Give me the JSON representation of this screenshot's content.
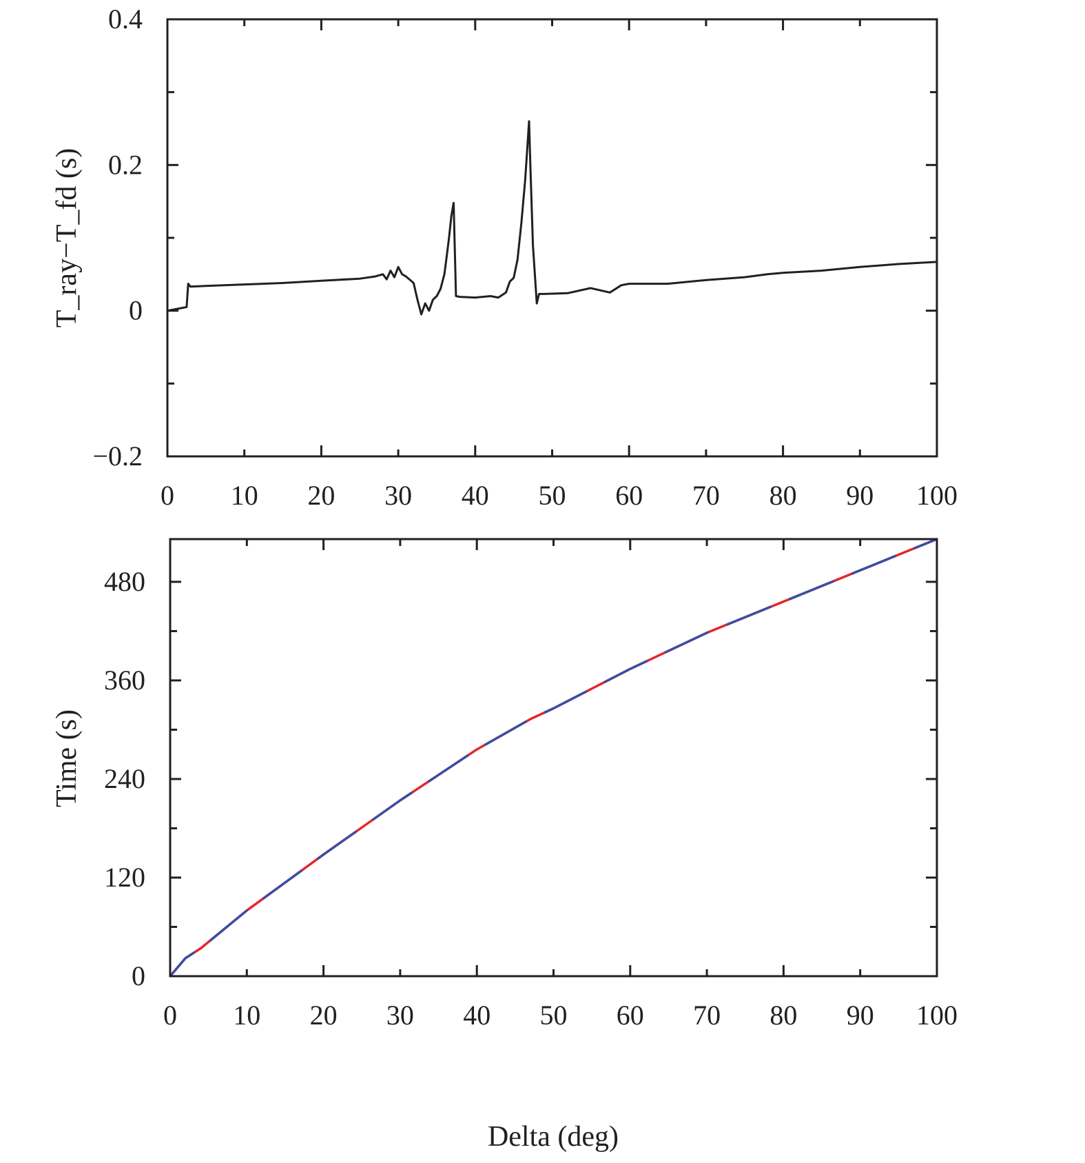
{
  "chart_data": [
    {
      "type": "line",
      "id": "top",
      "title": "",
      "xlabel": "",
      "ylabel": "T_ray−T_fd (s)",
      "xlim": [
        0,
        100
      ],
      "ylim": [
        -0.2,
        0.4
      ],
      "xticks": [
        0,
        10,
        20,
        30,
        40,
        50,
        60,
        70,
        80,
        90,
        100
      ],
      "xtick_labels": [
        "0",
        "10",
        "20",
        "30",
        "40",
        "50",
        "60",
        "70",
        "80",
        "90",
        "100"
      ],
      "yticks": [
        -0.2,
        0,
        0.2,
        0.4
      ],
      "ytick_labels": [
        "−0.2",
        "0",
        "0.2",
        "0.4"
      ],
      "yminor": [
        -0.1,
        0.1,
        0.3
      ],
      "grid": false,
      "legend": null,
      "series": [
        {
          "name": "T_ray - T_fd",
          "color": "#231f20",
          "x": [
            0,
            1,
            2.5,
            2.7,
            3,
            5,
            10,
            15,
            20,
            25,
            27,
            28,
            28.5,
            29,
            29.5,
            30,
            30.5,
            31,
            32,
            32.5,
            33,
            33.5,
            34,
            34.5,
            35,
            35.5,
            36,
            36.3,
            36.6,
            36.9,
            37.2,
            37.5,
            38,
            40,
            42,
            43,
            44,
            44.5,
            45,
            45.5,
            46,
            46.5,
            47,
            47.2,
            47.5,
            48,
            48.3,
            49,
            52,
            55,
            57.5,
            59,
            60,
            65,
            70,
            75,
            78,
            80,
            85,
            90,
            95,
            100
          ],
          "y": [
            0.0,
            0.002,
            0.005,
            0.037,
            0.033,
            0.034,
            0.036,
            0.038,
            0.041,
            0.044,
            0.047,
            0.05,
            0.043,
            0.055,
            0.046,
            0.06,
            0.05,
            0.047,
            0.038,
            0.015,
            -0.005,
            0.01,
            0.0,
            0.015,
            0.02,
            0.03,
            0.05,
            0.075,
            0.1,
            0.13,
            0.148,
            0.02,
            0.019,
            0.018,
            0.02,
            0.018,
            0.025,
            0.04,
            0.045,
            0.07,
            0.12,
            0.18,
            0.26,
            0.19,
            0.09,
            0.01,
            0.023,
            0.023,
            0.024,
            0.031,
            0.025,
            0.035,
            0.037,
            0.037,
            0.042,
            0.046,
            0.05,
            0.052,
            0.055,
            0.06,
            0.064,
            0.067
          ]
        }
      ]
    },
    {
      "type": "line",
      "id": "bottom",
      "title": "",
      "xlabel": "Delta (deg)",
      "ylabel": "Time (s)",
      "xlim": [
        0,
        100
      ],
      "ylim": [
        0,
        532
      ],
      "xticks": [
        0,
        10,
        20,
        30,
        40,
        50,
        60,
        70,
        80,
        90,
        100
      ],
      "xtick_labels": [
        "0",
        "10",
        "20",
        "30",
        "40",
        "50",
        "60",
        "70",
        "80",
        "90",
        "100"
      ],
      "yticks": [
        0,
        120,
        240,
        360,
        480
      ],
      "ytick_labels": [
        "0",
        "120",
        "240",
        "360",
        "480"
      ],
      "yminor": [
        60,
        180,
        300,
        420
      ],
      "grid": false,
      "legend": null,
      "series": [
        {
          "name": "T_fd (dashed red)",
          "color": "#e5262b",
          "style": "dashed-overlay",
          "x": [
            0,
            2,
            4,
            10,
            20,
            30,
            40,
            47,
            50,
            60,
            70,
            80,
            90,
            100
          ],
          "y": [
            0,
            22,
            34,
            80,
            148,
            214,
            276,
            313,
            326,
            374,
            418,
            456,
            494,
            532
          ]
        },
        {
          "name": "T_ray (blue)",
          "color": "#3b4ea2",
          "style": "solid",
          "x": [
            0,
            2,
            4,
            10,
            20,
            30,
            40,
            47,
            50,
            60,
            70,
            80,
            90,
            100
          ],
          "y": [
            0,
            22,
            34,
            80,
            148,
            214,
            276,
            313,
            326,
            374,
            418,
            456,
            494,
            532
          ]
        }
      ]
    }
  ]
}
